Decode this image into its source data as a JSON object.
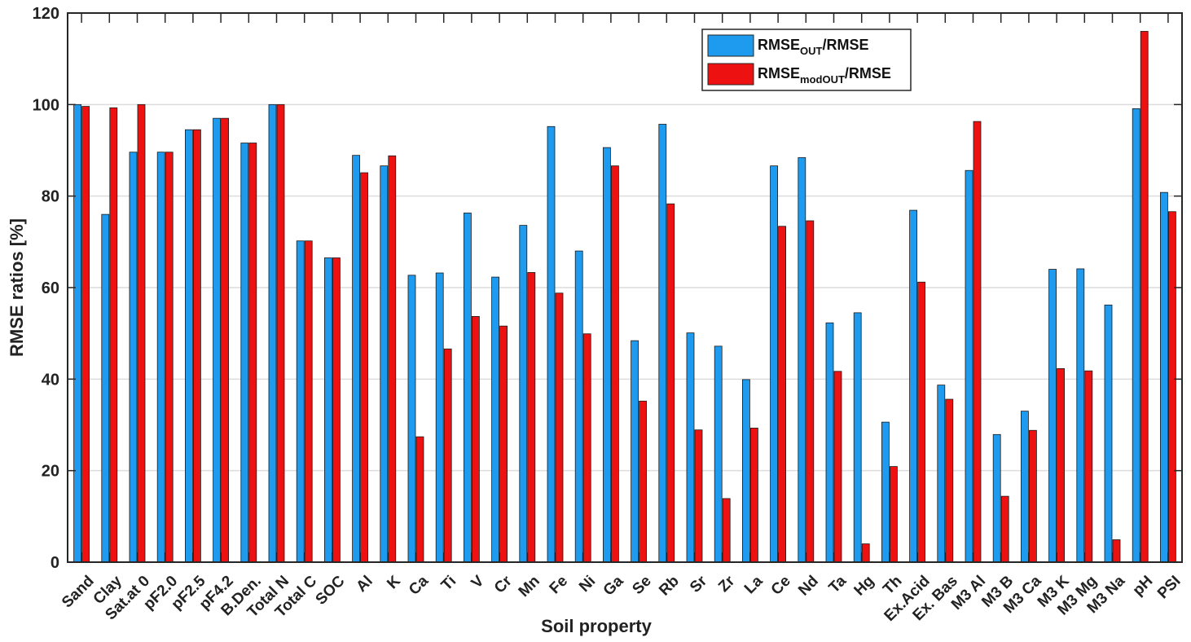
{
  "chart_data": {
    "type": "bar",
    "title": "",
    "xlabel": "Soil property",
    "ylabel": "RMSE ratios [%]",
    "ylim": [
      0,
      120
    ],
    "yticks": [
      0,
      20,
      40,
      60,
      80,
      100,
      120
    ],
    "grid": true,
    "legend_position": "top-right",
    "categories": [
      "Sand",
      "Clay",
      "Sat.at 0",
      "pF2.0",
      "pF2.5",
      "pF4.2",
      "B.Den.",
      "Total N",
      "Total C",
      "SOC",
      "Al",
      "K",
      "Ca",
      "Ti",
      "V",
      "Cr",
      "Mn",
      "Fe",
      "Ni",
      "Ga",
      "Se",
      "Rb",
      "Sr",
      "Zr",
      "La",
      "Ce",
      "Nd",
      "Ta",
      "Hg",
      "Th",
      "Ex.Acid",
      "Ex. Bas",
      "M3 Al",
      "M3 B",
      "M3 Ca",
      "M3 K",
      "M3 Mg",
      "M3 Na",
      "pH",
      "PSI"
    ],
    "series": [
      {
        "name": "RMSE_OUT/RMSE",
        "legend_main": "RMSE",
        "legend_sub": "OUT",
        "legend_tail": "/RMSE",
        "color": "#1e9bef",
        "values": [
          100.0,
          76.0,
          89.6,
          89.6,
          94.5,
          97.0,
          91.6,
          100.0,
          70.2,
          66.5,
          88.9,
          86.6,
          62.7,
          63.2,
          76.3,
          62.3,
          73.6,
          95.2,
          68.0,
          90.6,
          48.4,
          95.7,
          50.1,
          47.2,
          39.9,
          86.6,
          88.4,
          52.3,
          54.5,
          30.6,
          76.9,
          38.7,
          85.6,
          27.9,
          33.0,
          64.0,
          64.1,
          56.2,
          99.1,
          80.8
        ]
      },
      {
        "name": "RMSE_modOUT/RMSE",
        "legend_main": "RMSE",
        "legend_sub": "modOUT",
        "legend_tail": "/RMSE",
        "color": "#ee1111",
        "values": [
          99.6,
          99.3,
          100.0,
          89.6,
          94.5,
          97.0,
          91.6,
          100.0,
          70.2,
          66.5,
          85.1,
          88.8,
          27.4,
          46.6,
          53.7,
          51.6,
          63.3,
          58.8,
          49.9,
          86.6,
          35.2,
          78.3,
          28.9,
          13.9,
          29.3,
          73.4,
          74.6,
          41.7,
          4.0,
          20.9,
          61.2,
          35.6,
          96.3,
          14.4,
          28.8,
          42.3,
          41.8,
          4.9,
          116.0,
          76.6
        ]
      }
    ]
  }
}
